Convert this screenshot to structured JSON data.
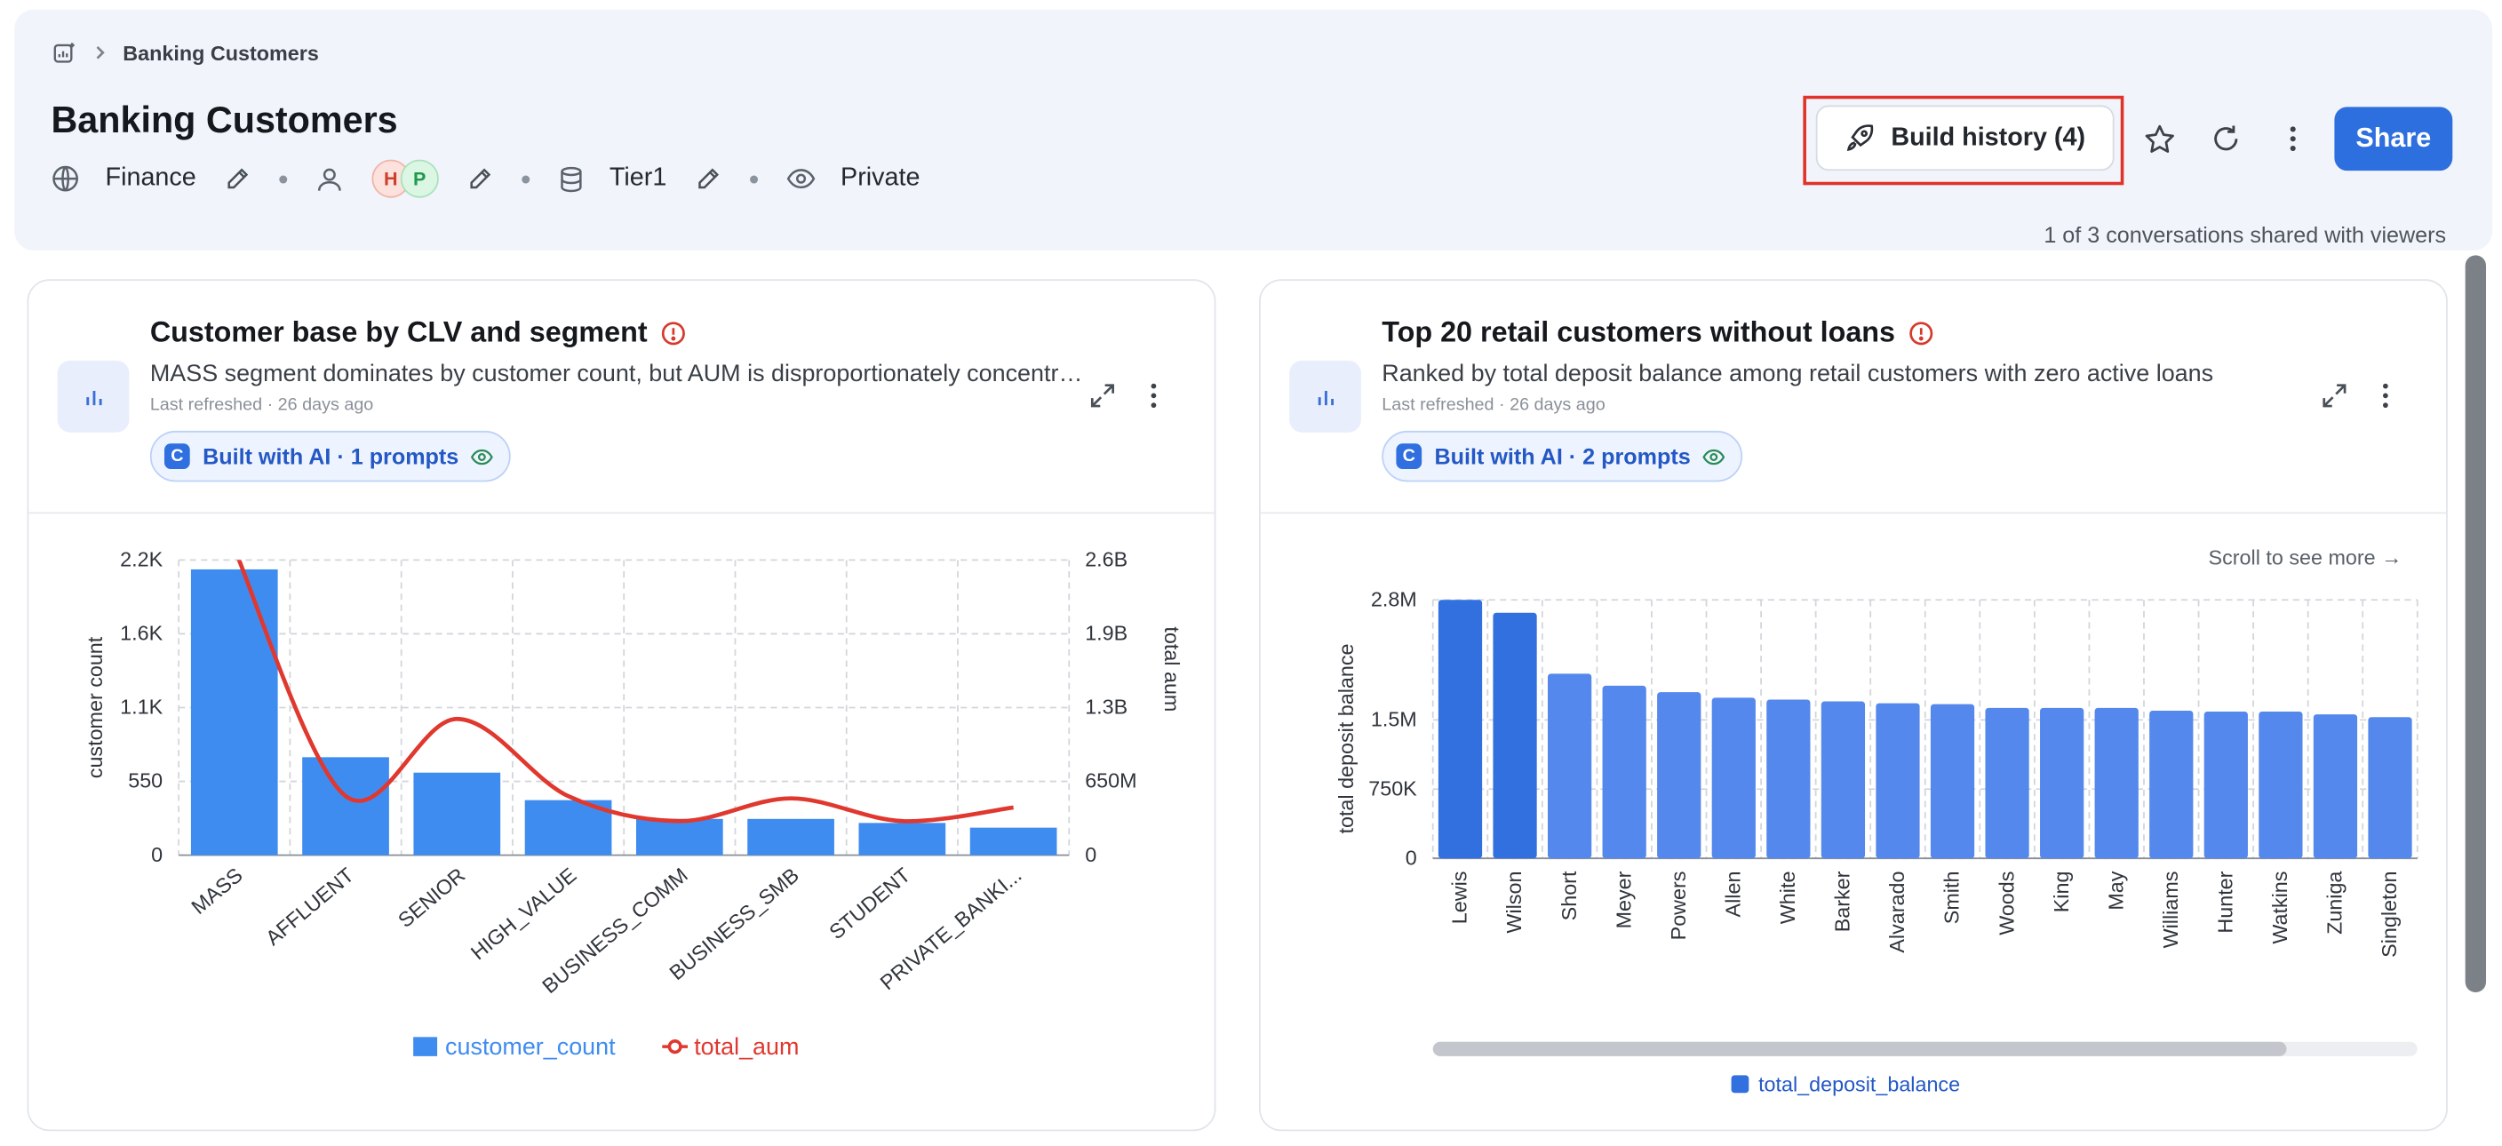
{
  "breadcrumb": {
    "label": "Banking Customers"
  },
  "page": {
    "title": "Banking Customers"
  },
  "meta": {
    "domain": "Finance",
    "avatars": [
      "H",
      "P"
    ],
    "tier": "Tier1",
    "visibility": "Private"
  },
  "actions": {
    "build_history": "Build history (4)",
    "share": "Share"
  },
  "shared_note": "1 of 3 conversations shared with viewers",
  "colors": {
    "accent": "#2e6fdf",
    "bar": "#3f8cf0",
    "bar_right": "#5588ec",
    "bar_right_top": "#3270e0",
    "line": "#e0382f",
    "red_frame": "#e0332a"
  },
  "cards": [
    {
      "title": "Customer base by CLV and segment",
      "description": "MASS segment dominates by customer count, but AUM is disproportionately concentrated in high-value segments",
      "refreshed": "Last refreshed · 26 days ago",
      "ai_badge": "Built with AI · 1 prompts"
    },
    {
      "title": "Top 20 retail customers without loans",
      "description": "Ranked by total deposit balance among retail customers with zero active loans",
      "refreshed": "Last refreshed · 26 days ago",
      "ai_badge": "Built with AI · 2 prompts",
      "scroll_hint": "Scroll to see more →"
    }
  ],
  "chart_data": [
    {
      "type": "bar",
      "categories": [
        "MASS",
        "AFFLUENT",
        "SENIOR",
        "HIGH_VALUE",
        "BUSINESS_COMM",
        "BUSINESS_SMB",
        "STUDENT",
        "PRIVATE_BANKI..."
      ],
      "series": [
        {
          "name": "customer_count",
          "type": "bar",
          "axis": "left",
          "values": [
            2130,
            730,
            615,
            410,
            270,
            270,
            240,
            205
          ]
        },
        {
          "name": "total_aum",
          "type": "line",
          "axis": "right",
          "values": [
            2700000000,
            520000000,
            1200000000,
            520000000,
            300000000,
            500000000,
            300000000,
            420000000
          ]
        }
      ],
      "ylabel": "customer count",
      "y2label": "total aum",
      "yticks": [
        "0",
        "550",
        "1.1K",
        "1.6K",
        "2.2K"
      ],
      "y2ticks": [
        "0",
        "650M",
        "1.3B",
        "1.9B",
        "2.6B"
      ],
      "ylim": [
        0,
        2200
      ],
      "y2lim": [
        0,
        2600000000
      ],
      "grid": true,
      "legend": "bottom"
    },
    {
      "type": "bar",
      "categories": [
        "Lewis",
        "Wilson",
        "Short",
        "Meyer",
        "Powers",
        "Allen",
        "White",
        "Barker",
        "Alvarado",
        "Smith",
        "Woods",
        "King",
        "May",
        "Williams",
        "Hunter",
        "Watkins",
        "Zuniga",
        "Singleton"
      ],
      "series": [
        {
          "name": "total_deposit_balance",
          "values": [
            2800000,
            2660000,
            2000000,
            1870000,
            1800000,
            1740000,
            1720000,
            1700000,
            1680000,
            1670000,
            1630000,
            1630000,
            1630000,
            1600000,
            1590000,
            1590000,
            1560000,
            1530000
          ]
        }
      ],
      "ylabel": "total deposit balance",
      "yticks": [
        "0",
        "750K",
        "1.5M",
        "2.8M"
      ],
      "ylim": [
        0,
        2800000
      ],
      "grid": true,
      "legend": "bottom"
    }
  ]
}
